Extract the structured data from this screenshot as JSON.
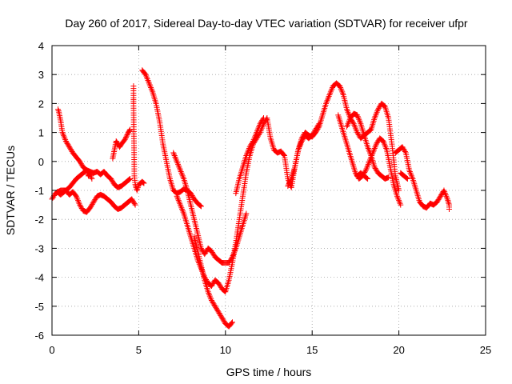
{
  "chart_data": {
    "type": "scatter",
    "title": "Day 260 of 2017, Sidereal Day-to-day VTEC variation (SDTVAR) for receiver ufpr",
    "xlabel": "GPS time / hours",
    "ylabel": "SDTVAR / TECUs",
    "xlim": [
      0,
      25
    ],
    "ylim": [
      -6,
      4
    ],
    "x_ticks": [
      0,
      5,
      10,
      15,
      20,
      25
    ],
    "y_ticks": [
      -6,
      -5,
      -4,
      -3,
      -2,
      -1,
      0,
      1,
      2,
      3,
      4
    ],
    "grid": true,
    "marker": "+",
    "color": "#ff0000",
    "series": [
      {
        "points": [
          [
            0.0,
            -1.3
          ],
          [
            0.2,
            -1.1
          ],
          [
            0.5,
            -1.0
          ],
          [
            0.8,
            -1.0
          ],
          [
            1.0,
            -1.15
          ],
          [
            1.2,
            -1.05
          ],
          [
            1.4,
            -1.2
          ],
          [
            1.6,
            -1.5
          ],
          [
            1.8,
            -1.7
          ],
          [
            2.0,
            -1.75
          ],
          [
            2.2,
            -1.6
          ],
          [
            2.4,
            -1.4
          ],
          [
            2.6,
            -1.2
          ],
          [
            2.8,
            -1.15
          ],
          [
            3.0,
            -1.2
          ],
          [
            3.2,
            -1.3
          ],
          [
            3.4,
            -1.4
          ],
          [
            3.6,
            -1.55
          ],
          [
            3.8,
            -1.65
          ],
          [
            4.0,
            -1.6
          ],
          [
            4.2,
            -1.5
          ],
          [
            4.4,
            -1.4
          ],
          [
            4.6,
            -1.3
          ],
          [
            4.8,
            -1.5
          ]
        ]
      },
      {
        "points": [
          [
            0.35,
            1.8
          ],
          [
            0.4,
            1.7
          ],
          [
            0.5,
            1.4
          ],
          [
            0.6,
            1.0
          ],
          [
            0.8,
            0.7
          ],
          [
            1.0,
            0.5
          ],
          [
            1.2,
            0.3
          ],
          [
            1.4,
            0.15
          ],
          [
            1.6,
            0.0
          ],
          [
            1.8,
            -0.2
          ],
          [
            2.0,
            -0.3
          ],
          [
            2.2,
            -0.35
          ],
          [
            2.4,
            -0.4
          ],
          [
            2.6,
            -0.35
          ],
          [
            2.8,
            -0.45
          ],
          [
            3.0,
            -0.35
          ],
          [
            3.2,
            -0.5
          ],
          [
            3.4,
            -0.6
          ],
          [
            3.6,
            -0.8
          ],
          [
            3.8,
            -0.9
          ],
          [
            4.0,
            -0.85
          ],
          [
            4.2,
            -0.75
          ],
          [
            4.4,
            -0.65
          ],
          [
            4.5,
            -0.6
          ]
        ]
      },
      {
        "points": [
          [
            0.3,
            -1.05
          ],
          [
            0.5,
            -1.15
          ],
          [
            0.8,
            -1.0
          ],
          [
            1.0,
            -0.9
          ],
          [
            1.2,
            -0.75
          ],
          [
            1.4,
            -0.6
          ],
          [
            1.6,
            -0.5
          ],
          [
            1.8,
            -0.4
          ],
          [
            2.0,
            -0.3
          ],
          [
            2.1,
            -0.5
          ],
          [
            2.2,
            -0.45
          ],
          [
            2.3,
            -0.6
          ]
        ]
      },
      {
        "points": [
          [
            3.5,
            0.1
          ],
          [
            3.6,
            0.4
          ],
          [
            3.7,
            0.7
          ],
          [
            3.8,
            0.6
          ],
          [
            3.9,
            0.5
          ],
          [
            4.0,
            0.6
          ],
          [
            4.2,
            0.75
          ],
          [
            4.4,
            1.0
          ],
          [
            4.5,
            1.1
          ]
        ]
      },
      {
        "points": [
          [
            4.7,
            2.6
          ],
          [
            4.7,
            2.2
          ],
          [
            4.7,
            2.0
          ],
          [
            4.75,
            -0.5
          ],
          [
            4.8,
            -0.8
          ],
          [
            4.9,
            -1.0
          ],
          [
            5.0,
            -0.8
          ],
          [
            5.2,
            -0.7
          ],
          [
            5.3,
            -0.75
          ]
        ]
      },
      {
        "points": [
          [
            5.2,
            3.15
          ],
          [
            5.4,
            3.0
          ],
          [
            5.6,
            2.7
          ],
          [
            5.8,
            2.4
          ],
          [
            6.0,
            2.0
          ],
          [
            6.2,
            1.4
          ],
          [
            6.4,
            0.6
          ],
          [
            6.6,
            0.0
          ],
          [
            6.8,
            -0.6
          ],
          [
            7.0,
            -1.0
          ],
          [
            7.2,
            -1.1
          ],
          [
            7.4,
            -1.05
          ],
          [
            7.6,
            -0.95
          ],
          [
            7.8,
            -1.0
          ],
          [
            8.0,
            -1.1
          ],
          [
            8.2,
            -1.3
          ],
          [
            8.4,
            -1.45
          ],
          [
            8.6,
            -1.55
          ]
        ]
      },
      {
        "points": [
          [
            7.0,
            0.3
          ],
          [
            7.2,
            0.0
          ],
          [
            7.4,
            -0.3
          ],
          [
            7.6,
            -0.6
          ],
          [
            7.8,
            -1.0
          ],
          [
            8.0,
            -1.5
          ],
          [
            8.2,
            -2.0
          ],
          [
            8.4,
            -2.5
          ],
          [
            8.6,
            -3.0
          ],
          [
            8.8,
            -3.2
          ],
          [
            9.0,
            -3.0
          ],
          [
            9.2,
            -3.1
          ],
          [
            9.4,
            -3.3
          ],
          [
            9.6,
            -3.4
          ],
          [
            9.8,
            -3.5
          ],
          [
            10.0,
            -3.5
          ],
          [
            10.2,
            -3.5
          ],
          [
            10.4,
            -3.3
          ],
          [
            10.6,
            -3.0
          ],
          [
            10.8,
            -2.6
          ],
          [
            11.0,
            -2.2
          ],
          [
            11.2,
            -1.8
          ]
        ]
      },
      {
        "points": [
          [
            7.2,
            -1.2
          ],
          [
            7.4,
            -1.5
          ],
          [
            7.6,
            -1.8
          ],
          [
            7.8,
            -2.2
          ],
          [
            8.0,
            -2.6
          ],
          [
            8.2,
            -3.0
          ],
          [
            8.4,
            -3.4
          ],
          [
            8.6,
            -3.7
          ],
          [
            8.8,
            -4.0
          ],
          [
            9.0,
            -4.2
          ],
          [
            9.2,
            -4.3
          ],
          [
            9.4,
            -4.1
          ],
          [
            9.6,
            -4.2
          ],
          [
            9.8,
            -4.4
          ],
          [
            10.0,
            -4.5
          ],
          [
            10.2,
            -4.1
          ],
          [
            10.4,
            -3.5
          ],
          [
            10.6,
            -2.8
          ],
          [
            10.8,
            -2.0
          ],
          [
            11.0,
            -1.2
          ],
          [
            11.2,
            -0.4
          ],
          [
            11.4,
            0.2
          ],
          [
            11.6,
            0.6
          ],
          [
            11.8,
            0.8
          ],
          [
            12.0,
            1.0
          ],
          [
            12.2,
            1.3
          ],
          [
            12.4,
            1.5
          ],
          [
            12.6,
            0.8
          ],
          [
            12.8,
            0.4
          ],
          [
            13.0,
            0.3
          ],
          [
            13.2,
            0.35
          ],
          [
            13.4,
            0.2
          ],
          [
            13.6,
            -0.6
          ],
          [
            13.8,
            -0.9
          ],
          [
            14.0,
            -0.2
          ],
          [
            14.2,
            0.4
          ],
          [
            14.4,
            0.7
          ],
          [
            14.6,
            0.9
          ],
          [
            14.8,
            0.8
          ],
          [
            15.0,
            0.9
          ],
          [
            15.2,
            1.1
          ],
          [
            15.4,
            1.3
          ]
        ]
      },
      {
        "points": [
          [
            8.2,
            -2.6
          ],
          [
            8.4,
            -3.1
          ],
          [
            8.6,
            -3.6
          ],
          [
            8.8,
            -4.1
          ],
          [
            9.0,
            -4.5
          ],
          [
            9.2,
            -4.8
          ],
          [
            9.4,
            -5.0
          ],
          [
            9.6,
            -5.2
          ],
          [
            9.8,
            -5.4
          ],
          [
            10.0,
            -5.6
          ],
          [
            10.2,
            -5.7
          ],
          [
            10.4,
            -5.55
          ]
        ]
      },
      {
        "points": [
          [
            10.6,
            -1.1
          ],
          [
            10.8,
            -0.6
          ],
          [
            11.0,
            -0.2
          ],
          [
            11.2,
            0.2
          ],
          [
            11.4,
            0.5
          ],
          [
            11.6,
            0.7
          ],
          [
            11.8,
            1.0
          ],
          [
            12.0,
            1.3
          ],
          [
            12.2,
            1.5
          ]
        ]
      },
      {
        "points": [
          [
            13.6,
            -0.85
          ],
          [
            13.8,
            -0.6
          ],
          [
            14.0,
            -0.2
          ],
          [
            14.2,
            0.4
          ],
          [
            14.4,
            0.8
          ],
          [
            14.6,
            1.0
          ],
          [
            14.8,
            0.9
          ],
          [
            15.0,
            0.85
          ],
          [
            15.2,
            1.0
          ],
          [
            15.4,
            1.2
          ],
          [
            15.6,
            1.6
          ],
          [
            15.8,
            2.0
          ],
          [
            16.0,
            2.3
          ],
          [
            16.2,
            2.6
          ],
          [
            16.4,
            2.7
          ],
          [
            16.6,
            2.6
          ],
          [
            16.8,
            2.3
          ],
          [
            17.0,
            1.8
          ],
          [
            17.2,
            1.5
          ],
          [
            17.4,
            1.3
          ],
          [
            17.6,
            1.0
          ],
          [
            17.8,
            0.8
          ],
          [
            18.0,
            0.9
          ],
          [
            18.2,
            1.0
          ],
          [
            18.4,
            1.1
          ],
          [
            18.6,
            1.5
          ],
          [
            18.8,
            1.8
          ],
          [
            19.0,
            2.0
          ],
          [
            19.2,
            1.9
          ],
          [
            19.4,
            1.5
          ],
          [
            19.6,
            0.6
          ],
          [
            19.8,
            -0.5
          ],
          [
            20.0,
            -1.0
          ]
        ]
      },
      {
        "points": [
          [
            16.5,
            1.6
          ],
          [
            16.7,
            1.2
          ],
          [
            16.9,
            0.8
          ],
          [
            17.1,
            0.4
          ],
          [
            17.3,
            0.0
          ],
          [
            17.5,
            -0.4
          ],
          [
            17.7,
            -0.6
          ],
          [
            17.9,
            -0.5
          ],
          [
            18.1,
            -0.3
          ],
          [
            18.3,
            0.0
          ],
          [
            18.5,
            0.3
          ],
          [
            18.7,
            0.6
          ],
          [
            18.9,
            0.8
          ],
          [
            19.1,
            0.7
          ],
          [
            19.3,
            0.4
          ],
          [
            19.5,
            -0.2
          ],
          [
            19.7,
            -0.8
          ],
          [
            19.9,
            -1.2
          ],
          [
            20.1,
            -1.5
          ]
        ]
      },
      {
        "points": [
          [
            17.0,
            1.2
          ],
          [
            17.2,
            1.5
          ],
          [
            17.4,
            1.65
          ],
          [
            17.6,
            1.6
          ],
          [
            17.8,
            1.3
          ],
          [
            18.0,
            0.9
          ],
          [
            18.2,
            0.5
          ],
          [
            18.4,
            0.2
          ],
          [
            18.6,
            -0.2
          ],
          [
            18.8,
            -0.4
          ],
          [
            19.0,
            -0.5
          ],
          [
            19.2,
            -0.6
          ],
          [
            19.4,
            -0.55
          ]
        ]
      },
      {
        "points": [
          [
            17.6,
            -0.5
          ],
          [
            17.8,
            -0.4
          ],
          [
            18.0,
            -0.5
          ],
          [
            18.2,
            -0.6
          ]
        ]
      },
      {
        "points": [
          [
            19.8,
            0.3
          ],
          [
            20.0,
            0.4
          ],
          [
            20.2,
            0.5
          ],
          [
            20.4,
            0.3
          ],
          [
            20.6,
            -0.3
          ],
          [
            20.8,
            -0.6
          ],
          [
            21.0,
            -1.0
          ],
          [
            21.2,
            -1.4
          ],
          [
            21.4,
            -1.55
          ],
          [
            21.6,
            -1.6
          ],
          [
            21.8,
            -1.45
          ],
          [
            22.0,
            -1.5
          ],
          [
            22.2,
            -1.4
          ],
          [
            22.4,
            -1.2
          ],
          [
            22.6,
            -1.0
          ],
          [
            22.8,
            -1.3
          ],
          [
            22.9,
            -1.5
          ],
          [
            22.9,
            -1.65
          ]
        ]
      },
      {
        "points": [
          [
            20.1,
            -0.4
          ],
          [
            20.3,
            -0.5
          ],
          [
            20.5,
            -0.6
          ]
        ]
      }
    ]
  }
}
